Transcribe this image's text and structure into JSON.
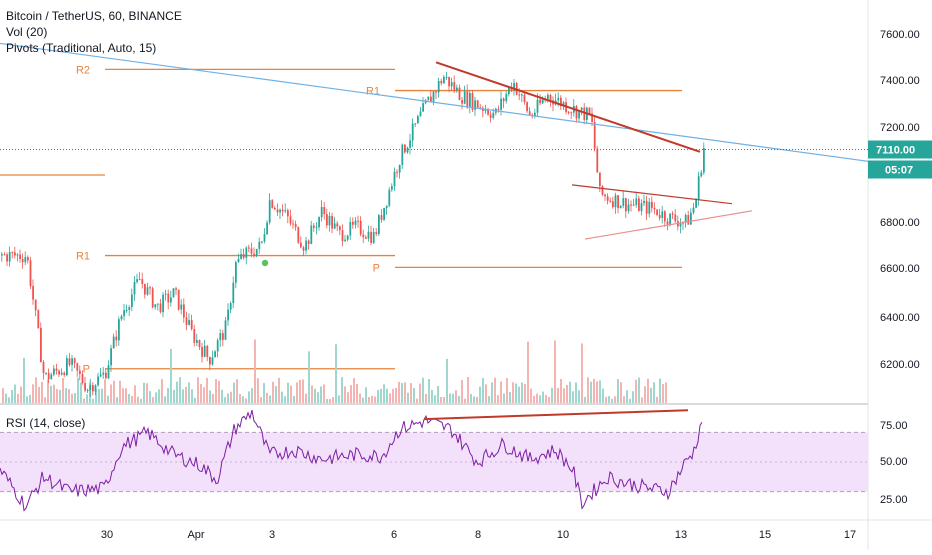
{
  "header": {
    "symbol_line": "Bitcoin / TetherUS, 60, BINANCE",
    "indicator_1": "Vol (20)",
    "indicator_2": "Pivots (Traditional, Auto, 15)"
  },
  "rsi_panel": {
    "label": "RSI (14, close)"
  },
  "price_badge": {
    "price": "7110.00",
    "countdown": "05:07"
  },
  "colors": {
    "up": "#26a69a",
    "down": "#ef5350",
    "pivot": "#e8833a",
    "trend_red": "#c0392b",
    "trend_blue": "#6fb1e6",
    "rsi_line": "#7b1fa2",
    "rsi_band": "#f3e0fb",
    "price_dotted": "#1e8e7e"
  },
  "chart_data": {
    "type": "candlestick",
    "series": [
      {
        "name": "Bitcoin / TetherUS, 60, BINANCE",
        "kind": "candles"
      },
      {
        "name": "Vol (20)",
        "kind": "volume"
      }
    ],
    "y_axis": {
      "ticks": [
        "7600.00",
        "7400.00",
        "7200.00",
        "7000.00",
        "6800.00",
        "6600.00",
        "6400.00",
        "6200.00"
      ],
      "range": [
        6080,
        7720
      ]
    },
    "x_axis": {
      "ticks": [
        "30",
        "Apr",
        "3",
        "6",
        "8",
        "10",
        "13",
        "15",
        "17"
      ]
    },
    "price_path": [
      [
        0,
        6660
      ],
      [
        0.03,
        6660
      ],
      [
        0.05,
        6140
      ],
      [
        0.08,
        6200
      ],
      [
        0.1,
        6100
      ],
      [
        0.12,
        6160
      ],
      [
        0.14,
        6420
      ],
      [
        0.16,
        6560
      ],
      [
        0.18,
        6440
      ],
      [
        0.2,
        6500
      ],
      [
        0.22,
        6330
      ],
      [
        0.24,
        6220
      ],
      [
        0.26,
        6360
      ],
      [
        0.27,
        6620
      ],
      [
        0.28,
        6660
      ],
      [
        0.3,
        6700
      ],
      [
        0.31,
        6900
      ],
      [
        0.33,
        6820
      ],
      [
        0.35,
        6700
      ],
      [
        0.37,
        6850
      ],
      [
        0.39,
        6750
      ],
      [
        0.41,
        6780
      ],
      [
        0.43,
        6740
      ],
      [
        0.46,
        7080
      ],
      [
        0.49,
        7300
      ],
      [
        0.51,
        7420
      ],
      [
        0.53,
        7340
      ],
      [
        0.55,
        7300
      ],
      [
        0.57,
        7260
      ],
      [
        0.59,
        7400
      ],
      [
        0.61,
        7250
      ],
      [
        0.63,
        7340
      ],
      [
        0.66,
        7280
      ],
      [
        0.68,
        7250
      ],
      [
        0.69,
        6920
      ],
      [
        0.72,
        6880
      ],
      [
        0.75,
        6860
      ],
      [
        0.77,
        6820
      ],
      [
        0.79,
        6800
      ],
      [
        0.8,
        6880
      ],
      [
        0.81,
        7120
      ]
    ],
    "pivots": [
      {
        "label": "R2",
        "value": 7450
      },
      {
        "label": "R1",
        "value": 6660
      },
      {
        "label": "P",
        "value": 6180
      },
      {
        "label": "R1",
        "value": 7360
      },
      {
        "label": "P",
        "value": 6610
      }
    ],
    "rsi": {
      "name": "RSI (14, close)",
      "ticks": [
        "75.00",
        "50.00",
        "25.00"
      ],
      "band": [
        30,
        70
      ],
      "path": [
        [
          0,
          45
        ],
        [
          0.03,
          20
        ],
        [
          0.05,
          40
        ],
        [
          0.08,
          30
        ],
        [
          0.12,
          32
        ],
        [
          0.14,
          60
        ],
        [
          0.17,
          70
        ],
        [
          0.2,
          55
        ],
        [
          0.23,
          48
        ],
        [
          0.25,
          38
        ],
        [
          0.27,
          72
        ],
        [
          0.29,
          84
        ],
        [
          0.31,
          55
        ],
        [
          0.34,
          58
        ],
        [
          0.37,
          52
        ],
        [
          0.41,
          55
        ],
        [
          0.44,
          54
        ],
        [
          0.46,
          72
        ],
        [
          0.49,
          78
        ],
        [
          0.52,
          72
        ],
        [
          0.55,
          50
        ],
        [
          0.58,
          62
        ],
        [
          0.61,
          52
        ],
        [
          0.64,
          58
        ],
        [
          0.66,
          45
        ],
        [
          0.67,
          22
        ],
        [
          0.7,
          40
        ],
        [
          0.72,
          36
        ],
        [
          0.75,
          32
        ],
        [
          0.77,
          30
        ],
        [
          0.79,
          50
        ],
        [
          0.8,
          58
        ],
        [
          0.81,
          82
        ]
      ]
    },
    "grid": false,
    "legend": "top-left"
  }
}
